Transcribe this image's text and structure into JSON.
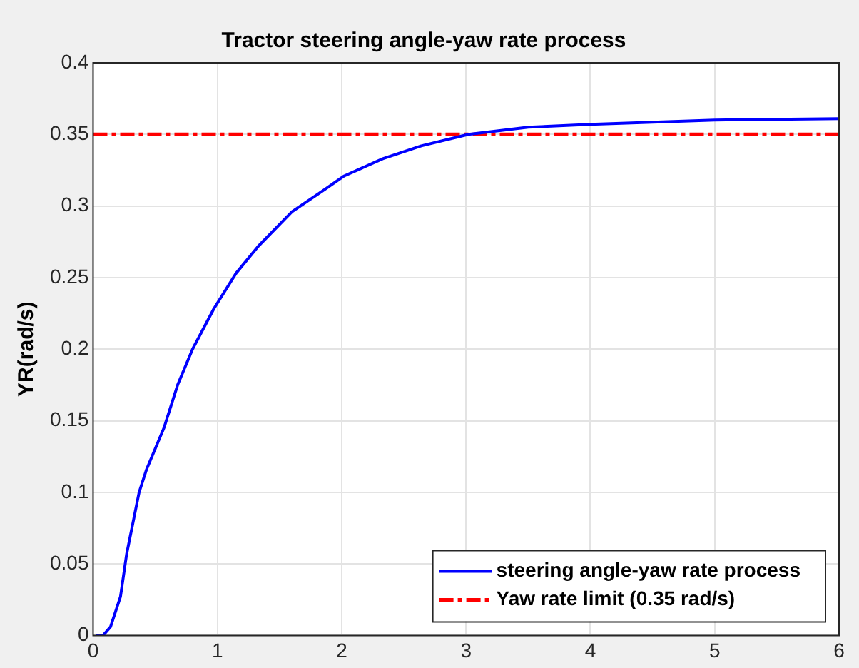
{
  "chart_data": {
    "type": "line",
    "title": "Tractor steering angle-yaw rate process",
    "ylabel": "YR(rad/s)",
    "xlim": [
      0,
      6
    ],
    "xticks": [
      0,
      1,
      2,
      3,
      4,
      5,
      6
    ],
    "ylim": [
      0,
      0.4
    ],
    "yticks": [
      0,
      0.05,
      0.1,
      0.15,
      0.2,
      0.25,
      0.3,
      0.35,
      0.4
    ],
    "grid": true,
    "legend": "bottom right",
    "marker": "none",
    "series": [
      {
        "name": "steering angle-yaw rate process",
        "color": "#0000ff",
        "line_style": "solid",
        "x": [
          0.02,
          0.08,
          0.14,
          0.22,
          0.27,
          0.37,
          0.43,
          0.57,
          0.68,
          0.8,
          0.97,
          1.15,
          1.33,
          1.6,
          1.87,
          2.02,
          2.33,
          2.64,
          3.02,
          3.5,
          4,
          5,
          6
        ],
        "values": [
          0,
          0,
          0.006,
          0.027,
          0.057,
          0.1,
          0.116,
          0.145,
          0.175,
          0.2,
          0.228,
          0.253,
          0.272,
          0.296,
          0.312,
          0.321,
          0.333,
          0.342,
          0.35,
          0.355,
          0.357,
          0.36,
          0.361
        ]
      },
      {
        "name": "Yaw rate limit (0.35 rad/s)",
        "color": "#ff0000",
        "line_style": "dashed",
        "x": [
          0,
          6
        ],
        "values": [
          0.35,
          0.35
        ]
      }
    ]
  }
}
